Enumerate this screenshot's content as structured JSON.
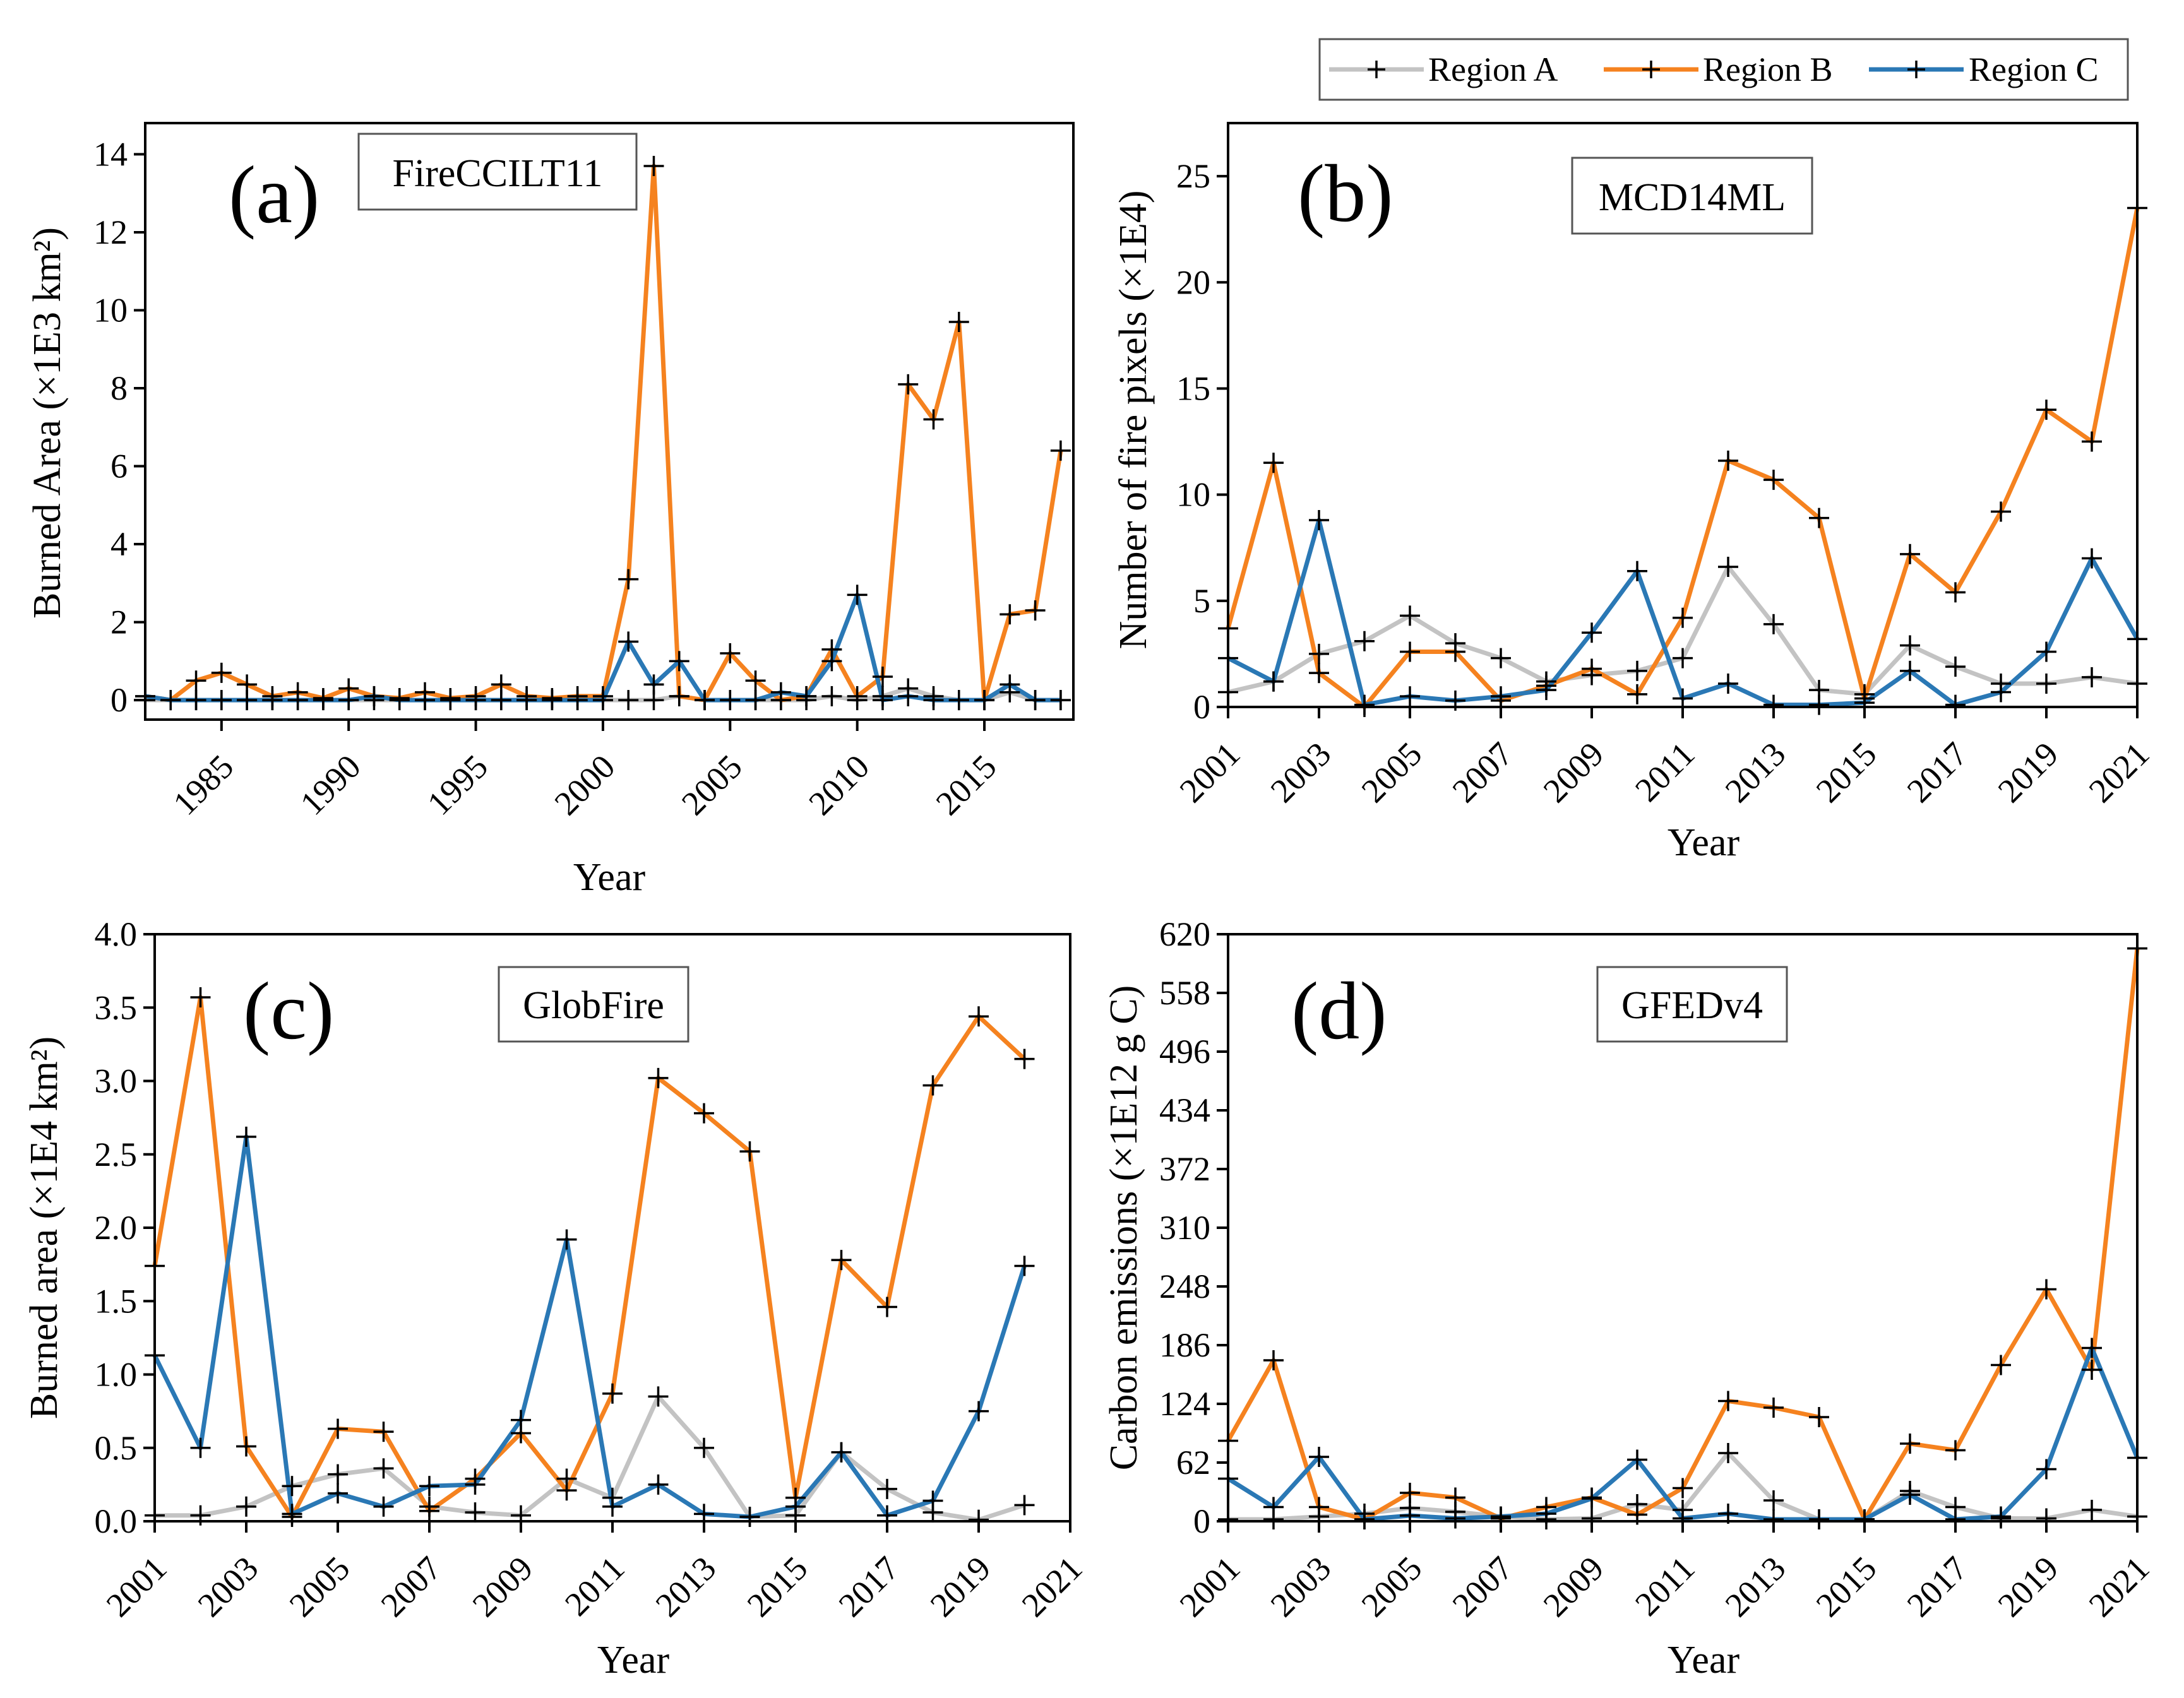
{
  "legend": {
    "items": [
      {
        "name": "Region A",
        "color": "#c3c3c3"
      },
      {
        "name": "Region B",
        "color": "#f5821f"
      },
      {
        "name": "Region C",
        "color": "#2a78b5"
      }
    ]
  },
  "chart_data": [
    {
      "type": "line",
      "panel_label": "(a)",
      "dataset": "FireCCILT11",
      "xlabel": "Year",
      "ylabel": "Burned Area (×1E3 km²)",
      "xlim": [
        1982,
        2018.5
      ],
      "ylim": [
        -0.5,
        14.8
      ],
      "xticks": [
        1985,
        1990,
        1995,
        2000,
        2005,
        2010,
        2015
      ],
      "yticks": [
        0,
        2,
        4,
        6,
        8,
        10,
        12,
        14
      ],
      "x": [
        1982,
        1983,
        1984,
        1985,
        1986,
        1987,
        1988,
        1989,
        1990,
        1991,
        1992,
        1993,
        1994,
        1995,
        1996,
        1997,
        1998,
        1999,
        2000,
        2001,
        2002,
        2003,
        2004,
        2005,
        2006,
        2007,
        2008,
        2009,
        2010,
        2011,
        2012,
        2013,
        2014,
        2015,
        2016,
        2017,
        2018
      ],
      "series": [
        {
          "name": "Region A",
          "values": [
            0,
            0,
            0,
            0,
            0,
            0,
            0,
            0,
            0,
            0,
            0,
            0,
            0,
            0,
            0,
            0,
            0,
            0,
            0,
            0,
            0,
            0.1,
            0,
            0,
            0,
            0,
            0,
            0.1,
            0,
            0.1,
            0.3,
            0.1,
            0,
            0,
            0.2,
            0,
            0
          ]
        },
        {
          "name": "Region B",
          "values": [
            0.1,
            0,
            0.5,
            0.7,
            0.4,
            0.1,
            0.2,
            0.05,
            0.3,
            0.1,
            0.05,
            0.2,
            0.05,
            0.1,
            0.4,
            0.1,
            0.05,
            0.1,
            0.1,
            3.1,
            13.7,
            0.1,
            0,
            1.2,
            0.5,
            0,
            0.1,
            1.3,
            0.1,
            0.6,
            8.1,
            7.2,
            9.7,
            0,
            2.2,
            2.3,
            6.4
          ]
        },
        {
          "name": "Region C",
          "values": [
            0.1,
            0,
            0,
            0,
            0,
            0,
            0,
            0,
            0,
            0.1,
            0,
            0,
            0,
            0,
            0,
            0,
            0,
            0,
            0,
            1.5,
            0.4,
            1.0,
            0,
            0,
            0,
            0.2,
            0.1,
            1.0,
            2.7,
            0,
            0.1,
            0,
            0,
            0,
            0.4,
            0,
            0
          ]
        }
      ]
    },
    {
      "type": "line",
      "panel_label": "(b)",
      "dataset": "MCD14ML",
      "xlabel": "Year",
      "ylabel": "Number of fire pixels (×1E4)",
      "xlim": [
        2001,
        2021
      ],
      "ylim": [
        0,
        27.5
      ],
      "xticks": [
        2001,
        2003,
        2005,
        2007,
        2009,
        2011,
        2013,
        2015,
        2017,
        2019,
        2021
      ],
      "yticks": [
        0,
        5,
        10,
        15,
        20,
        25
      ],
      "x": [
        2001,
        2002,
        2003,
        2004,
        2005,
        2006,
        2007,
        2008,
        2009,
        2010,
        2011,
        2012,
        2013,
        2014,
        2015,
        2016,
        2017,
        2018,
        2019,
        2020,
        2021
      ],
      "series": [
        {
          "name": "Region A",
          "values": [
            0.7,
            1.2,
            2.5,
            3.1,
            4.3,
            3.0,
            2.3,
            1.2,
            1.5,
            1.7,
            2.3,
            6.6,
            3.9,
            0.8,
            0.6,
            2.9,
            1.9,
            1.1,
            1.1,
            1.4,
            1.1
          ]
        },
        {
          "name": "Region B",
          "values": [
            3.7,
            11.5,
            1.6,
            0,
            2.6,
            2.6,
            0.3,
            1.0,
            1.8,
            0.6,
            4.2,
            11.6,
            10.7,
            8.9,
            0.4,
            7.2,
            5.4,
            9.2,
            14.0,
            12.5,
            23.5
          ]
        },
        {
          "name": "Region C",
          "values": [
            2.3,
            1.2,
            8.8,
            0.1,
            0.5,
            0.3,
            0.5,
            0.8,
            3.5,
            6.4,
            0.4,
            1.1,
            0.1,
            0.1,
            0.2,
            1.7,
            0.1,
            0.7,
            2.6,
            7.0,
            3.2
          ]
        }
      ]
    },
    {
      "type": "line",
      "panel_label": "(c)",
      "dataset": "GlobFire",
      "xlabel": "Year",
      "ylabel": "Burned area (×1E4 km²)",
      "xlim": [
        2001,
        2021
      ],
      "ylim": [
        0,
        4.0
      ],
      "xticks": [
        2001,
        2003,
        2005,
        2007,
        2009,
        2011,
        2013,
        2015,
        2017,
        2019,
        2021
      ],
      "yticks": [
        0.0,
        0.5,
        1.0,
        1.5,
        2.0,
        2.5,
        3.0,
        3.5,
        4.0
      ],
      "x": [
        2001,
        2002,
        2003,
        2004,
        2005,
        2006,
        2007,
        2008,
        2009,
        2010,
        2011,
        2012,
        2013,
        2014,
        2015,
        2016,
        2017,
        2018,
        2019,
        2020
      ],
      "series": [
        {
          "name": "Region A",
          "values": [
            0.04,
            0.04,
            0.1,
            0.24,
            0.32,
            0.36,
            0.1,
            0.06,
            0.04,
            0.29,
            0.16,
            0.85,
            0.5,
            0.03,
            0.04,
            0.47,
            0.22,
            0.06,
            0.01,
            0.11
          ]
        },
        {
          "name": "Region B",
          "values": [
            1.74,
            3.57,
            0.51,
            0.03,
            0.63,
            0.61,
            0.07,
            0.29,
            0.6,
            0.21,
            0.87,
            3.02,
            2.78,
            2.52,
            0.16,
            1.78,
            1.46,
            2.97,
            3.44,
            3.15
          ]
        },
        {
          "name": "Region C",
          "values": [
            1.13,
            0.5,
            2.62,
            0.05,
            0.19,
            0.1,
            0.24,
            0.25,
            0.69,
            1.92,
            0.1,
            0.25,
            0.05,
            0.03,
            0.1,
            0.47,
            0.04,
            0.14,
            0.75,
            1.74
          ]
        }
      ]
    },
    {
      "type": "line",
      "panel_label": "(d)",
      "dataset": "GFEDv4",
      "xlabel": "Year",
      "ylabel": "Carbon emissions (×1E12 g C)",
      "xlim": [
        2001,
        2021
      ],
      "ylim": [
        0,
        620
      ],
      "xticks": [
        2001,
        2003,
        2005,
        2007,
        2009,
        2011,
        2013,
        2015,
        2017,
        2019,
        2021
      ],
      "yticks": [
        0,
        62,
        124,
        186,
        248,
        310,
        372,
        434,
        496,
        558,
        620
      ],
      "x": [
        2001,
        2002,
        2003,
        2004,
        2005,
        2006,
        2007,
        2008,
        2009,
        2010,
        2011,
        2012,
        2013,
        2014,
        2015,
        2016,
        2017,
        2018,
        2019,
        2020,
        2021
      ],
      "series": [
        {
          "name": "Region A",
          "values": [
            2,
            2,
            5,
            8,
            14,
            10,
            5,
            2,
            3,
            18,
            12,
            72,
            22,
            2,
            2,
            32,
            15,
            3,
            3,
            12,
            5
          ]
        },
        {
          "name": "Region B",
          "values": [
            85,
            170,
            15,
            2,
            30,
            25,
            3,
            15,
            25,
            7,
            35,
            127,
            120,
            110,
            2,
            82,
            75,
            165,
            245,
            160,
            605
          ]
        },
        {
          "name": "Region C",
          "values": [
            45,
            15,
            68,
            2,
            6,
            3,
            5,
            8,
            24,
            65,
            3,
            8,
            2,
            2,
            2,
            28,
            2,
            5,
            55,
            183,
            67
          ]
        }
      ]
    }
  ]
}
